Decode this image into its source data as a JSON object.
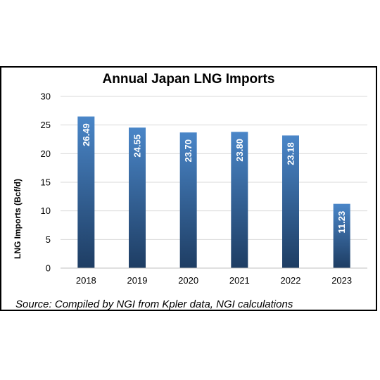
{
  "chart_data": {
    "type": "bar",
    "title": "Annual Japan LNG Imports",
    "ylabel": "LNG Imports (Bcf/d)",
    "xlabel": "",
    "categories": [
      "2018",
      "2019",
      "2020",
      "2021",
      "2022",
      "2023"
    ],
    "values": [
      26.49,
      24.55,
      23.7,
      23.8,
      23.18,
      11.23
    ],
    "data_labels": [
      "26.49",
      "24.55",
      "23.70",
      "23.80",
      "23.18",
      "11.23"
    ],
    "ylim": [
      0,
      30
    ],
    "yticks": [
      0,
      5,
      10,
      15,
      20,
      25,
      30
    ],
    "grid": true,
    "bar_color_top": "#4a86c8",
    "bar_color_bottom": "#1e3d63",
    "source": "Source: Compiled by NGI from Kpler data, NGI calculations"
  }
}
